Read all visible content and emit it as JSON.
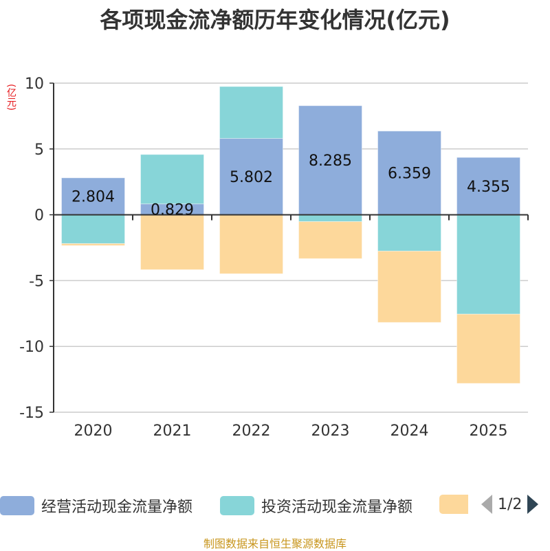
{
  "title": "各项现金流净额历年变化情况(亿元)",
  "unit_label": "(亿元)",
  "source": "制图数据来自恒生聚源数据库",
  "legend": {
    "items": [
      {
        "label": "经营活动现金流量净额",
        "color": "#8eaddb"
      },
      {
        "label": "投资活动现金流量净额",
        "color": "#87d5d8"
      },
      {
        "label": "",
        "color": "#fdd89b"
      }
    ],
    "page_text": "1/2"
  },
  "chart_data": {
    "type": "bar",
    "stacked": true,
    "title": "各项现金流净额历年变化情况(亿元)",
    "xlabel": "",
    "ylabel": "(亿元)",
    "categories": [
      "2020",
      "2021",
      "2022",
      "2023",
      "2024",
      "2025"
    ],
    "ylim": [
      -15,
      10
    ],
    "yticks": [
      10,
      5,
      0,
      -5,
      -10,
      -15
    ],
    "grid": true,
    "legend_position": "bottom",
    "series": [
      {
        "name": "经营活动现金流量净额",
        "color": "#8eaddb",
        "values": [
          2.804,
          0.829,
          5.802,
          8.285,
          6.359,
          4.355
        ],
        "show_labels": true
      },
      {
        "name": "投资活动现金流量净额",
        "color": "#87d5d8",
        "values": [
          -2.19,
          3.75,
          3.94,
          -0.52,
          -2.76,
          -7.55
        ],
        "show_labels": false
      },
      {
        "name": "",
        "color": "#fdd89b",
        "values": [
          -0.15,
          -4.17,
          -4.48,
          -2.81,
          -5.42,
          -5.26
        ],
        "show_labels": false
      }
    ]
  }
}
